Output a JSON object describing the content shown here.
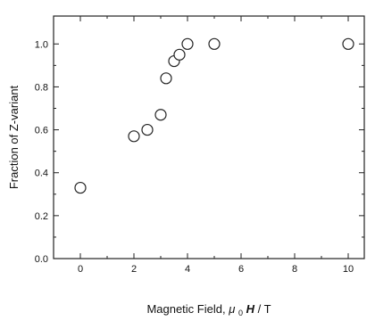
{
  "chart_data": {
    "type": "scatter",
    "title": "",
    "xlabel_parts": {
      "prefix": "Magnetic Field, ",
      "mu": "μ",
      "sub": "0",
      "h": "H",
      "suffix": " / T"
    },
    "ylabel": "Fraction of Z-variant",
    "xlim": [
      -1,
      10.6
    ],
    "ylim": [
      0,
      1.13
    ],
    "xticks": [
      0,
      2,
      4,
      6,
      8,
      10
    ],
    "yticks": [
      0.0,
      0.2,
      0.4,
      0.6,
      0.8,
      1.0
    ],
    "ytick_labels": [
      "0.0",
      "0.2",
      "0.4",
      "0.6",
      "0.8",
      "1.0"
    ],
    "grid": false,
    "marker": "open-circle",
    "series": [
      {
        "x": [
          0,
          2,
          2.5,
          3,
          3.2,
          3.5,
          3.7,
          4,
          5,
          10
        ],
        "y": [
          0.33,
          0.57,
          0.6,
          0.67,
          0.84,
          0.92,
          0.95,
          1.0,
          1.0,
          1.0
        ]
      }
    ]
  }
}
